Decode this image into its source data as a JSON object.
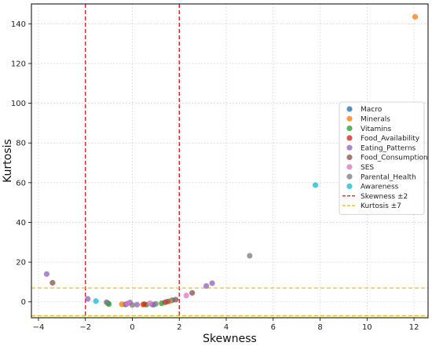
{
  "chart_data": {
    "type": "scatter",
    "xlabel": "Skewness",
    "ylabel": "Kurtosis",
    "xlim": [
      -4.3,
      12.6
    ],
    "ylim": [
      -8,
      150
    ],
    "x_ticks": [
      -4,
      -2,
      0,
      2,
      4,
      6,
      8,
      10,
      12
    ],
    "y_ticks": [
      0,
      20,
      40,
      60,
      80,
      100,
      120,
      140
    ],
    "grid": true,
    "legend_position": "center-right",
    "series": [
      {
        "name": "Macro",
        "color": "#1f77b4",
        "points": [
          [
            -1.05,
            -0.6
          ],
          [
            -0.3,
            -1.3
          ],
          [
            0.9,
            -1.4
          ],
          [
            1.7,
            0.8
          ]
        ]
      },
      {
        "name": "Minerals",
        "color": "#ff7f0e",
        "points": [
          [
            12.05,
            143.5
          ],
          [
            -0.45,
            -1.2
          ],
          [
            0.45,
            -1.4
          ],
          [
            1.6,
            0.4
          ]
        ]
      },
      {
        "name": "Vitamins",
        "color": "#2ca02c",
        "points": [
          [
            -1.0,
            -1.1
          ],
          [
            0.6,
            -1.4
          ],
          [
            1.25,
            -0.7
          ]
        ]
      },
      {
        "name": "Food_Availability",
        "color": "#d62728",
        "points": [
          [
            0.5,
            -1.2
          ],
          [
            1.4,
            -0.2
          ]
        ]
      },
      {
        "name": "Eating_Patterns",
        "color": "#9467bd",
        "points": [
          [
            -3.65,
            14.0
          ],
          [
            -1.9,
            1.5
          ],
          [
            -0.25,
            -1.1
          ],
          [
            -0.1,
            -0.3
          ],
          [
            0.2,
            -1.4
          ],
          [
            0.85,
            -1.3
          ],
          [
            3.15,
            8.0
          ],
          [
            3.4,
            9.4
          ]
        ]
      },
      {
        "name": "Food_Consumption",
        "color": "#8c564b",
        "points": [
          [
            -3.4,
            9.6
          ],
          [
            1.5,
            0.1
          ],
          [
            1.85,
            1.1
          ],
          [
            2.55,
            4.5
          ]
        ]
      },
      {
        "name": "SES",
        "color": "#e377c2",
        "points": [
          [
            -0.2,
            -0.8
          ],
          [
            0.75,
            -0.7
          ],
          [
            2.3,
            3.2
          ]
        ]
      },
      {
        "name": "Parental_Health",
        "color": "#7f7f7f",
        "points": [
          [
            -1.1,
            -0.2
          ],
          [
            0.0,
            -1.6
          ],
          [
            1.0,
            -1.0
          ],
          [
            5.0,
            23.2
          ]
        ]
      },
      {
        "name": "Awareness",
        "color": "#17becf",
        "points": [
          [
            -1.55,
            0.4
          ],
          [
            7.8,
            58.8
          ]
        ]
      }
    ],
    "reference_lines": [
      {
        "name": "Skewness ±2",
        "orientation": "vertical",
        "values": [
          -2,
          2
        ],
        "color": "#d62728",
        "style": "dashed"
      },
      {
        "name": "Kurtosis ±7",
        "orientation": "horizontal",
        "values": [
          -7,
          7
        ],
        "color": "#e6b800",
        "style": "dashed"
      }
    ]
  }
}
